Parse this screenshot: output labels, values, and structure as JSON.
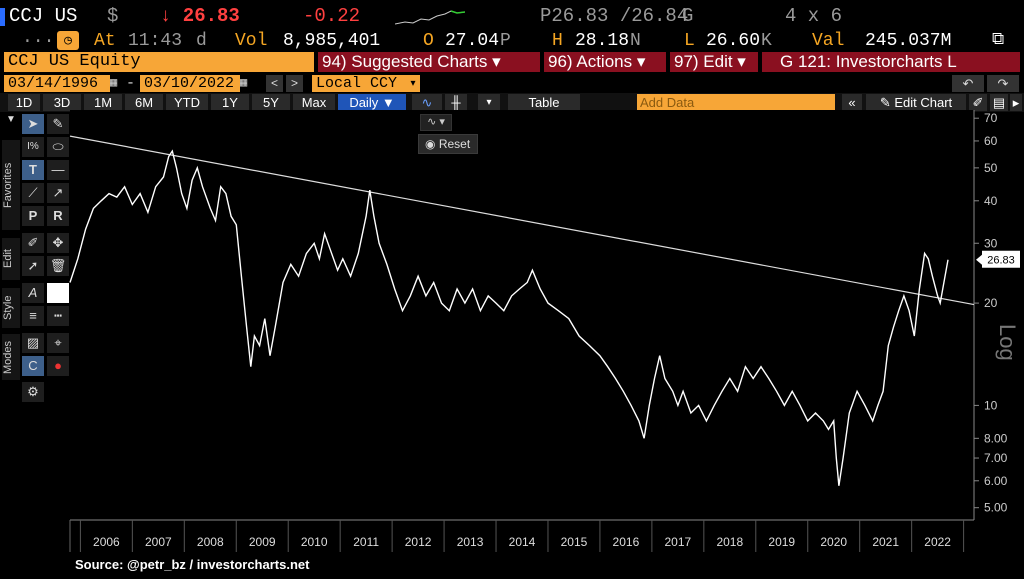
{
  "header": {
    "ticker": "CCJ US",
    "currency_symbol": "$",
    "last_price": "↓ 26.83",
    "change": "-0.22",
    "bid_ask": "P26.83 /26.84",
    "bid_ask_suffix": "G",
    "size": "4 x 6",
    "at_label": "At",
    "time": "11:43",
    "time_suffix": "d",
    "vol_label": "Vol",
    "vol_value": "8,985,401",
    "open_label": "O",
    "open_value": "27.04",
    "open_suffix": "P",
    "high_label": "H",
    "high_value": "28.18",
    "high_suffix": "N",
    "low_label": "L",
    "low_value": "26.60",
    "low_suffix": "K",
    "val_label": "Val",
    "val_value": "245.037M"
  },
  "menu": {
    "security": "CCJ US Equity",
    "suggested": "94) Suggested Charts ▾",
    "actions": "96) Actions ▾",
    "edit": "97) Edit ▾",
    "chart_name": "G 121: Investorcharts L"
  },
  "dates": {
    "start": "03/14/1996",
    "sep": "-",
    "end": "03/10/2022",
    "currency": "Local CCY"
  },
  "periods": [
    "1D",
    "3D",
    "1M",
    "6M",
    "YTD",
    "1Y",
    "5Y",
    "Max"
  ],
  "frequency": "Daily ▼",
  "table_label": "Table",
  "add_data_placeholder": "Add Data",
  "edit_chart_label": "Edit Chart",
  "reset_label": "Reset",
  "side_tabs": [
    "Favorites",
    "Edit",
    "Style",
    "Modes"
  ],
  "icons": {
    "pointer": "arrow-pointer-icon",
    "pen": "pen-icon",
    "ellipse": "ellipse-icon",
    "text": "text-tool-icon",
    "line": "horizontal-line-icon",
    "trend": "trend-line-icon",
    "gear": "gear-icon"
  },
  "colors": {
    "accent_orange": "#f7a637",
    "maroon": "#8a1020",
    "price_red": "#ff4040",
    "active_blue": "#1f55b8"
  },
  "source": "Source: @petr_bz / investorcharts.net",
  "chart_data": {
    "type": "line",
    "scale": "log",
    "y_axis_label": "Log",
    "ylim": [
      4.6,
      74
    ],
    "xlim": [
      2005.3,
      2022.7
    ],
    "y_ticks": [
      5,
      6,
      7,
      8,
      10,
      20,
      30,
      40,
      50,
      60,
      70
    ],
    "y_tick_labels": [
      "5.00",
      "6.00",
      "7.00",
      "8.00",
      "10",
      "20",
      "30",
      "40",
      "50",
      "60",
      "70"
    ],
    "x_tick_labels": [
      "2006",
      "2007",
      "2008",
      "2009",
      "2010",
      "2011",
      "2012",
      "2013",
      "2014",
      "2015",
      "2016",
      "2017",
      "2018",
      "2019",
      "2020",
      "2021",
      "2022"
    ],
    "x_tick_positions": [
      2006,
      2007,
      2008,
      2009,
      2010,
      2011,
      2012,
      2013,
      2014,
      2015,
      2016,
      2017,
      2018,
      2019,
      2020,
      2021,
      2022
    ],
    "last_value_label": "26.83",
    "last_value": 26.83,
    "series": [
      {
        "points": [
          [
            2005.3,
            23
          ],
          [
            2005.45,
            27
          ],
          [
            2005.6,
            33
          ],
          [
            2005.75,
            38
          ],
          [
            2005.9,
            40
          ],
          [
            2006.05,
            42
          ],
          [
            2006.2,
            41
          ],
          [
            2006.35,
            44
          ],
          [
            2006.5,
            39
          ],
          [
            2006.65,
            42
          ],
          [
            2006.8,
            37
          ],
          [
            2006.95,
            44
          ],
          [
            2007.1,
            47
          ],
          [
            2007.2,
            54
          ],
          [
            2007.27,
            56
          ],
          [
            2007.35,
            50
          ],
          [
            2007.45,
            42
          ],
          [
            2007.55,
            38
          ],
          [
            2007.65,
            46
          ],
          [
            2007.75,
            50
          ],
          [
            2007.85,
            44
          ],
          [
            2008.0,
            38
          ],
          [
            2008.1,
            35
          ],
          [
            2008.2,
            44
          ],
          [
            2008.3,
            42
          ],
          [
            2008.4,
            36
          ],
          [
            2008.5,
            34
          ],
          [
            2008.6,
            24
          ],
          [
            2008.7,
            17
          ],
          [
            2008.78,
            13
          ],
          [
            2008.85,
            16
          ],
          [
            2008.95,
            15
          ],
          [
            2009.05,
            18
          ],
          [
            2009.15,
            14
          ],
          [
            2009.25,
            17
          ],
          [
            2009.4,
            23
          ],
          [
            2009.55,
            26
          ],
          [
            2009.7,
            24
          ],
          [
            2009.85,
            28
          ],
          [
            2010.0,
            30
          ],
          [
            2010.1,
            27
          ],
          [
            2010.2,
            32
          ],
          [
            2010.3,
            29
          ],
          [
            2010.45,
            25
          ],
          [
            2010.55,
            27
          ],
          [
            2010.7,
            24
          ],
          [
            2010.85,
            28
          ],
          [
            2011.0,
            36
          ],
          [
            2011.07,
            43
          ],
          [
            2011.15,
            36
          ],
          [
            2011.25,
            30
          ],
          [
            2011.4,
            26
          ],
          [
            2011.55,
            22
          ],
          [
            2011.7,
            19
          ],
          [
            2011.85,
            21
          ],
          [
            2012.0,
            24
          ],
          [
            2012.15,
            21
          ],
          [
            2012.3,
            23
          ],
          [
            2012.45,
            20
          ],
          [
            2012.6,
            19
          ],
          [
            2012.75,
            22
          ],
          [
            2012.9,
            20
          ],
          [
            2013.05,
            22
          ],
          [
            2013.2,
            19
          ],
          [
            2013.35,
            21
          ],
          [
            2013.5,
            20
          ],
          [
            2013.65,
            19
          ],
          [
            2013.8,
            21
          ],
          [
            2013.95,
            22
          ],
          [
            2014.1,
            23
          ],
          [
            2014.2,
            25
          ],
          [
            2014.35,
            22
          ],
          [
            2014.5,
            20
          ],
          [
            2014.7,
            19
          ],
          [
            2014.9,
            18
          ],
          [
            2015.1,
            16
          ],
          [
            2015.3,
            15
          ],
          [
            2015.5,
            14
          ],
          [
            2015.65,
            13
          ],
          [
            2015.8,
            12
          ],
          [
            2015.95,
            11
          ],
          [
            2016.1,
            10
          ],
          [
            2016.25,
            9
          ],
          [
            2016.35,
            8
          ],
          [
            2016.45,
            10
          ],
          [
            2016.55,
            12
          ],
          [
            2016.65,
            14
          ],
          [
            2016.75,
            12
          ],
          [
            2016.9,
            11
          ],
          [
            2017.0,
            10
          ],
          [
            2017.1,
            11
          ],
          [
            2017.25,
            9.5
          ],
          [
            2017.4,
            10
          ],
          [
            2017.55,
            9
          ],
          [
            2017.7,
            10
          ],
          [
            2017.85,
            11
          ],
          [
            2018.0,
            12
          ],
          [
            2018.15,
            11
          ],
          [
            2018.3,
            13
          ],
          [
            2018.45,
            12
          ],
          [
            2018.6,
            13
          ],
          [
            2018.75,
            12
          ],
          [
            2018.9,
            11
          ],
          [
            2019.05,
            10
          ],
          [
            2019.2,
            11
          ],
          [
            2019.35,
            10
          ],
          [
            2019.5,
            9
          ],
          [
            2019.65,
            9.5
          ],
          [
            2019.8,
            9
          ],
          [
            2019.9,
            8.5
          ],
          [
            2020.0,
            9
          ],
          [
            2020.05,
            7
          ],
          [
            2020.1,
            5.8
          ],
          [
            2020.18,
            7
          ],
          [
            2020.3,
            9.5
          ],
          [
            2020.45,
            11
          ],
          [
            2020.6,
            10
          ],
          [
            2020.75,
            9
          ],
          [
            2020.85,
            10
          ],
          [
            2020.95,
            11
          ],
          [
            2021.05,
            15
          ],
          [
            2021.15,
            17
          ],
          [
            2021.25,
            19
          ],
          [
            2021.35,
            21
          ],
          [
            2021.45,
            19
          ],
          [
            2021.55,
            16
          ],
          [
            2021.65,
            22
          ],
          [
            2021.75,
            28
          ],
          [
            2021.82,
            27
          ],
          [
            2021.9,
            24
          ],
          [
            2022.0,
            21
          ],
          [
            2022.05,
            20
          ],
          [
            2022.12,
            23
          ],
          [
            2022.2,
            26.83
          ]
        ]
      }
    ],
    "trendline": [
      [
        2005.3,
        62
      ],
      [
        2022.7,
        19.8
      ]
    ]
  }
}
